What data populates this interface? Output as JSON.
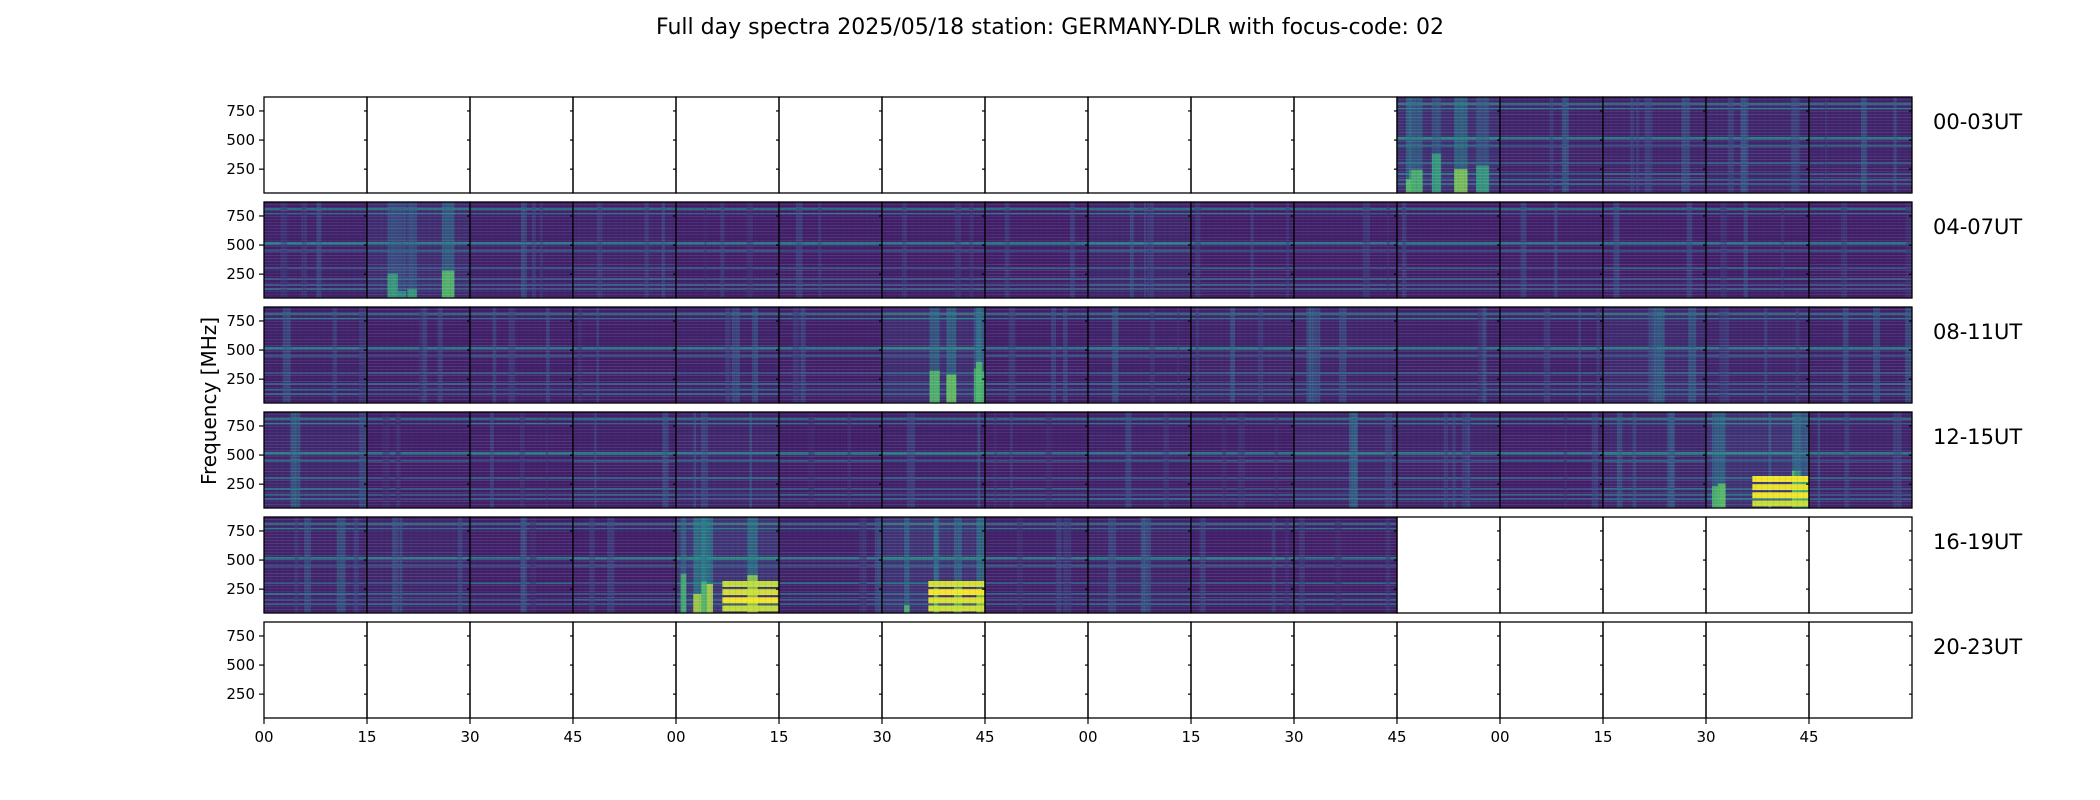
{
  "chart_data": {
    "type": "heatmap",
    "title": "Full day spectra 2025/05/18 station: GERMANY-DLR with focus-code: 02",
    "ylabel": "Frequency [MHz]",
    "xlabel": "",
    "y_ticks": [
      "250",
      "500",
      "750"
    ],
    "y_tick_values": [
      250,
      500,
      750
    ],
    "ylim": [
      45,
      870
    ],
    "x_ticks": [
      "00",
      "15",
      "30",
      "45",
      "00",
      "15",
      "30",
      "45",
      "00",
      "15",
      "30",
      "45",
      "00",
      "15",
      "30",
      "45"
    ],
    "columns_per_row": 16,
    "minutes_per_column": 15,
    "colormap": [
      "#440154",
      "#3b528b",
      "#21918c",
      "#5ec962",
      "#fde725"
    ],
    "rows": [
      {
        "label": "00-03UT",
        "coverage": [
          0,
          0,
          0,
          0,
          0,
          0,
          0,
          0,
          0,
          0,
          0,
          1,
          1,
          1,
          1,
          1
        ],
        "intensity": [
          0,
          0,
          0,
          0,
          0,
          0,
          0,
          0,
          0,
          0,
          0,
          0.65,
          0.4,
          0.4,
          0.45,
          0.4
        ]
      },
      {
        "label": "04-07UT",
        "coverage": [
          1,
          1,
          1,
          1,
          1,
          1,
          1,
          1,
          1,
          1,
          1,
          1,
          1,
          1,
          1,
          1
        ],
        "intensity": [
          0.35,
          0.6,
          0.35,
          0.4,
          0.3,
          0.3,
          0.3,
          0.3,
          0.45,
          0.3,
          0.3,
          0.3,
          0.3,
          0.3,
          0.3,
          0.3
        ]
      },
      {
        "label": "08-11UT",
        "coverage": [
          1,
          1,
          1,
          1,
          1,
          1,
          1,
          1,
          1,
          1,
          1,
          1,
          1,
          1,
          1,
          1
        ],
        "intensity": [
          0.35,
          0.3,
          0.3,
          0.3,
          0.35,
          0.3,
          0.6,
          0.3,
          0.35,
          0.4,
          0.4,
          0.35,
          0.35,
          0.55,
          0.4,
          0.35
        ]
      },
      {
        "label": "12-15UT",
        "coverage": [
          1,
          1,
          1,
          1,
          1,
          1,
          1,
          1,
          1,
          1,
          1,
          1,
          1,
          1,
          1,
          1
        ],
        "intensity": [
          0.5,
          0.3,
          0.3,
          0.35,
          0.45,
          0.25,
          0.35,
          0.3,
          0.35,
          0.3,
          0.45,
          0.4,
          0.3,
          0.5,
          0.75,
          0.4
        ]
      },
      {
        "label": "16-19UT",
        "coverage": [
          1,
          1,
          1,
          1,
          1,
          1,
          1,
          1,
          1,
          1,
          1,
          0,
          0,
          0,
          0,
          0
        ],
        "intensity": [
          0.4,
          0.45,
          0.3,
          0.3,
          0.8,
          0.35,
          0.75,
          0.35,
          0.4,
          0.3,
          0.3,
          0,
          0,
          0,
          0,
          0
        ]
      },
      {
        "label": "20-23UT",
        "coverage": [
          0,
          0,
          0,
          0,
          0,
          0,
          0,
          0,
          0,
          0,
          0,
          0,
          0,
          0,
          0,
          0
        ],
        "intensity": [
          0,
          0,
          0,
          0,
          0,
          0,
          0,
          0,
          0,
          0,
          0,
          0,
          0,
          0,
          0,
          0
        ]
      }
    ],
    "grid": false,
    "legend": "none"
  }
}
